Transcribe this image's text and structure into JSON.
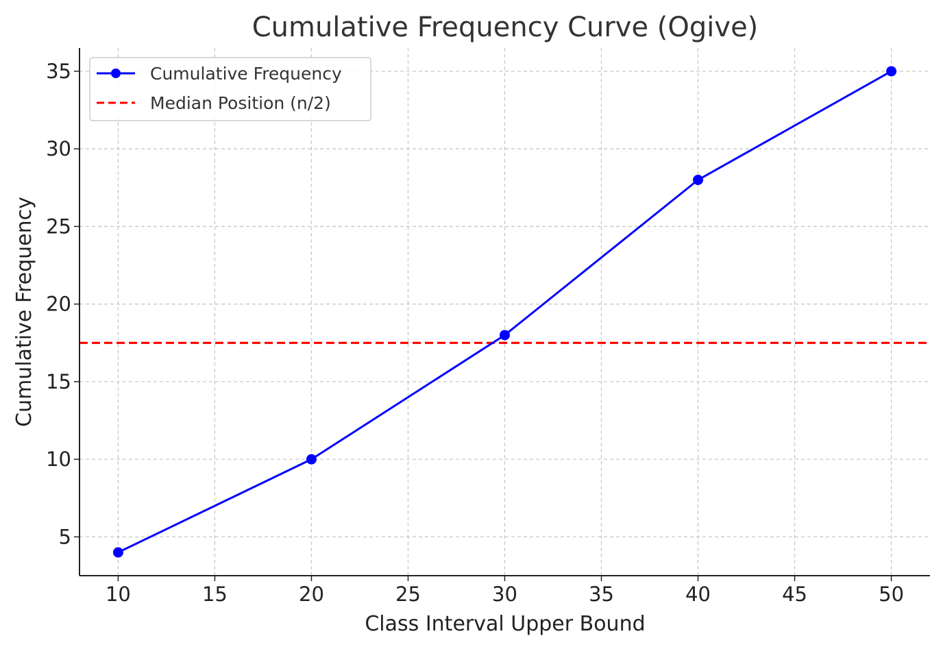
{
  "chart_data": {
    "type": "line",
    "title": "Cumulative Frequency Curve (Ogive)",
    "xlabel": "Class Interval Upper Bound",
    "ylabel": "Cumulative Frequency",
    "x": [
      10,
      20,
      30,
      40,
      50
    ],
    "xlim": [
      8,
      52
    ],
    "ylim": [
      2.5,
      36.5
    ],
    "xticks": [
      10,
      15,
      20,
      25,
      30,
      35,
      40,
      45,
      50
    ],
    "yticks": [
      5,
      10,
      15,
      20,
      25,
      30,
      35
    ],
    "grid": true,
    "legend_position": "top-left",
    "series": [
      {
        "name": "Cumulative Frequency",
        "values": [
          4,
          10,
          18,
          28,
          35
        ],
        "color": "#0000ff",
        "marker": "circle"
      }
    ],
    "reference_lines": [
      {
        "name": "Median Position (n/2)",
        "orientation": "horizontal",
        "value": 17.5,
        "color": "#ff0000",
        "style": "dashed"
      }
    ]
  }
}
